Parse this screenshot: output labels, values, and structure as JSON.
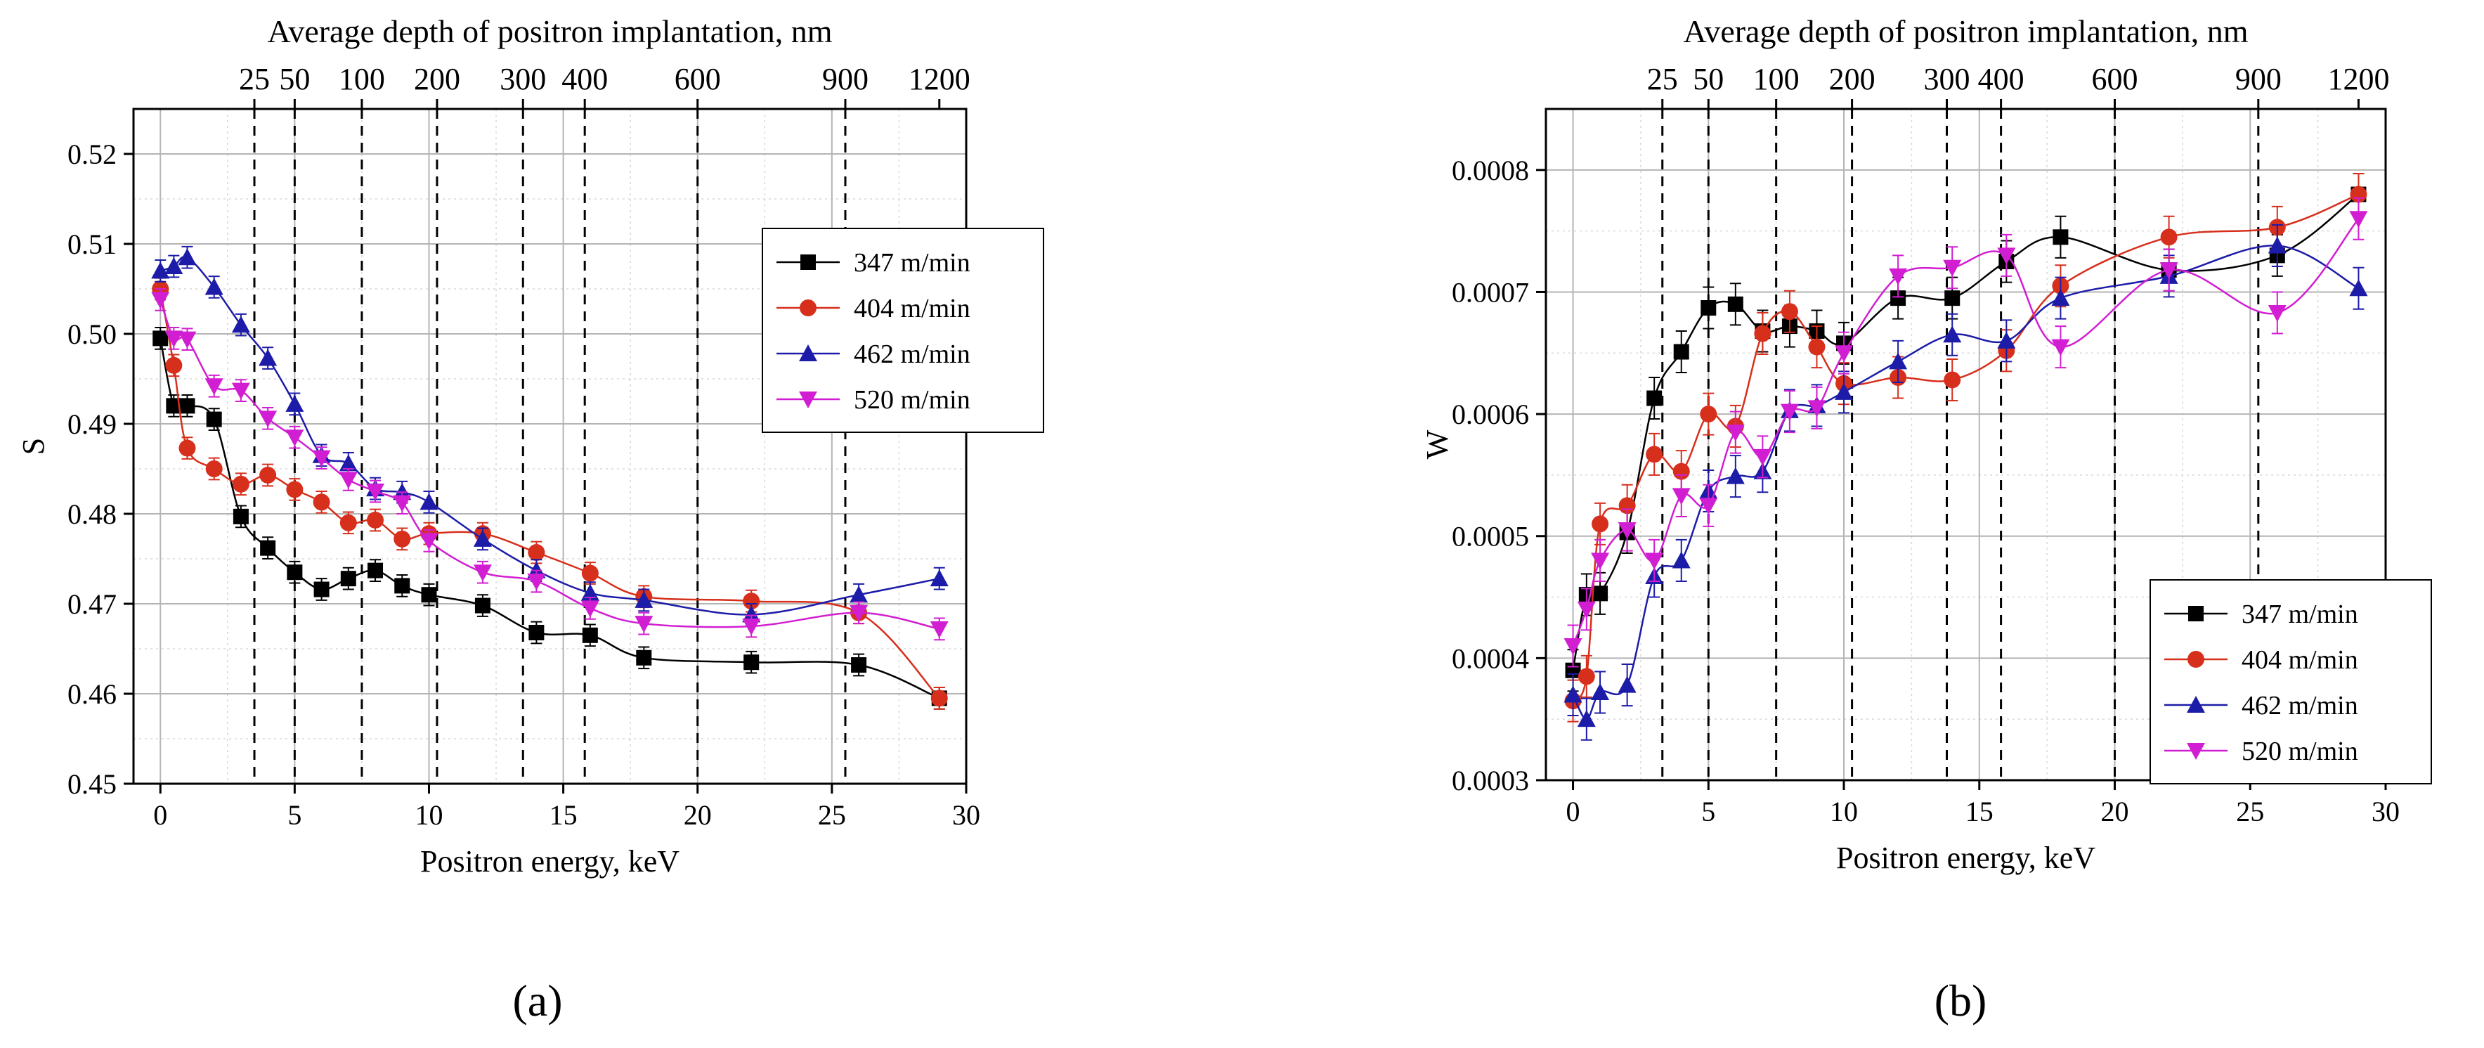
{
  "figure": {
    "panels": [
      "(a)",
      "(b)"
    ]
  },
  "chart_data": [
    {
      "type": "scatter",
      "panel_label": "(a)",
      "xlabel": "Positron energy, keV",
      "ylabel": "S",
      "top_axis_title": "Average depth of positron implantation, nm",
      "xlim": [
        -1,
        30
      ],
      "ylim": [
        0.45,
        0.525
      ],
      "x_ticks": [
        0,
        5,
        10,
        15,
        20,
        25,
        30
      ],
      "y_ticks": [
        "0.45",
        "0.46",
        "0.47",
        "0.48",
        "0.49",
        "0.50",
        "0.51",
        "0.52"
      ],
      "top_ticks": [
        {
          "label": "25",
          "energy": 3.5
        },
        {
          "label": "50",
          "energy": 5.0
        },
        {
          "label": "100",
          "energy": 7.5
        },
        {
          "label": "200",
          "energy": 10.3
        },
        {
          "label": "300",
          "energy": 13.5
        },
        {
          "label": "400",
          "energy": 15.8
        },
        {
          "label": "600",
          "energy": 20.0
        },
        {
          "label": "900",
          "energy": 25.5
        },
        {
          "label": "1200",
          "energy": 29.0
        }
      ],
      "grid": true,
      "legend_position": "top-right",
      "series": [
        {
          "name": "347 m/min",
          "marker": "square",
          "color": "#000000",
          "x": [
            0,
            0.5,
            1,
            2,
            3,
            4,
            5,
            6,
            7,
            8,
            9,
            10,
            12,
            14,
            16,
            18,
            22,
            26,
            29
          ],
          "y": [
            0.4995,
            0.492,
            0.492,
            0.4905,
            0.4797,
            0.4762,
            0.4735,
            0.4716,
            0.4728,
            0.4737,
            0.472,
            0.471,
            0.4698,
            0.4668,
            0.4665,
            0.464,
            0.4635,
            0.4632,
            0.4595
          ]
        },
        {
          "name": "404 m/min",
          "marker": "circle",
          "color": "#d62f1c",
          "x": [
            0,
            0.5,
            1,
            2,
            3,
            4,
            5,
            6,
            7,
            8,
            9,
            10,
            12,
            14,
            16,
            18,
            22,
            26,
            29
          ],
          "y": [
            0.505,
            0.4965,
            0.4873,
            0.485,
            0.4833,
            0.4843,
            0.4827,
            0.4813,
            0.479,
            0.4793,
            0.4772,
            0.4778,
            0.4778,
            0.4757,
            0.4734,
            0.4708,
            0.4703,
            0.469,
            0.4595
          ]
        },
        {
          "name": "462 m/min",
          "marker": "triangle-up",
          "color": "#1c1ca8",
          "x": [
            0,
            0.5,
            1,
            2,
            3,
            4,
            5,
            6,
            7,
            8,
            9,
            10,
            12,
            14,
            16,
            18,
            22,
            26,
            29
          ],
          "y": [
            0.507,
            0.5075,
            0.5085,
            0.5052,
            0.501,
            0.4973,
            0.4922,
            0.4865,
            0.4856,
            0.4828,
            0.4824,
            0.4813,
            0.4772,
            0.4737,
            0.4712,
            0.4704,
            0.4688,
            0.471,
            0.4728
          ]
        },
        {
          "name": "520 m/min",
          "marker": "triangle-down",
          "color": "#d21ed2",
          "x": [
            0,
            0.5,
            1,
            2,
            3,
            4,
            5,
            6,
            7,
            8,
            9,
            10,
            12,
            14,
            16,
            18,
            22,
            26,
            29
          ],
          "y": [
            0.5038,
            0.4995,
            0.4994,
            0.4942,
            0.4937,
            0.4906,
            0.4885,
            0.4862,
            0.4838,
            0.4825,
            0.4812,
            0.477,
            0.4735,
            0.4725,
            0.4695,
            0.4678,
            0.4675,
            0.469,
            0.4672
          ]
        }
      ]
    },
    {
      "type": "scatter",
      "panel_label": "(b)",
      "xlabel": "Positron energy, keV",
      "ylabel": "W",
      "top_axis_title": "Average depth of positron implantation, nm",
      "xlim": [
        -1,
        30
      ],
      "ylim": [
        0.0003,
        0.00085
      ],
      "x_ticks": [
        0,
        5,
        10,
        15,
        20,
        25,
        30
      ],
      "y_ticks": [
        "0.0003",
        "0.0004",
        "0.0005",
        "0.0006",
        "0.0007",
        "0.0008"
      ],
      "top_ticks": [
        {
          "label": "25",
          "energy": 3.3
        },
        {
          "label": "50",
          "energy": 5.0
        },
        {
          "label": "100",
          "energy": 7.5
        },
        {
          "label": "200",
          "energy": 10.3
        },
        {
          "label": "300",
          "energy": 13.8
        },
        {
          "label": "400",
          "energy": 15.8
        },
        {
          "label": "600",
          "energy": 20.0
        },
        {
          "label": "900",
          "energy": 25.3
        },
        {
          "label": "1200",
          "energy": 29.0
        }
      ],
      "grid": true,
      "legend_position": "bottom-right",
      "series": [
        {
          "name": "347 m/min",
          "marker": "square",
          "color": "#000000",
          "x": [
            0,
            0.5,
            1,
            2,
            3,
            4,
            5,
            6,
            7,
            8,
            9,
            10,
            12,
            14,
            16,
            18,
            22,
            26,
            29
          ],
          "y": [
            0.00039,
            0.000452,
            0.000453,
            0.000503,
            0.000613,
            0.000651,
            0.000687,
            0.00069,
            0.000668,
            0.000672,
            0.000668,
            0.000658,
            0.000695,
            0.000695,
            0.000725,
            0.000745,
            0.000718,
            0.00073,
            0.00078
          ]
        },
        {
          "name": "404 m/min",
          "marker": "circle",
          "color": "#d62f1c",
          "x": [
            0,
            0.5,
            1,
            2,
            3,
            4,
            5,
            6,
            7,
            8,
            9,
            10,
            12,
            14,
            16,
            18,
            22,
            26,
            29
          ],
          "y": [
            0.000365,
            0.000385,
            0.00051,
            0.000525,
            0.000567,
            0.000553,
            0.0006,
            0.00059,
            0.000666,
            0.000684,
            0.000655,
            0.000625,
            0.00063,
            0.000628,
            0.000652,
            0.000705,
            0.000745,
            0.000753,
            0.00078
          ]
        },
        {
          "name": "462 m/min",
          "marker": "triangle-up",
          "color": "#1c1ca8",
          "x": [
            0,
            0.5,
            1,
            2,
            3,
            4,
            5,
            6,
            7,
            8,
            9,
            10,
            12,
            14,
            16,
            18,
            22,
            26,
            29
          ],
          "y": [
            0.00037,
            0.00035,
            0.000372,
            0.000378,
            0.000467,
            0.00048,
            0.000537,
            0.000549,
            0.000553,
            0.000603,
            0.000607,
            0.000618,
            0.000643,
            0.000665,
            0.00066,
            0.000695,
            0.000713,
            0.000738,
            0.000703
          ]
        },
        {
          "name": "520 m/min",
          "marker": "triangle-down",
          "color": "#d21ed2",
          "x": [
            0,
            0.5,
            1,
            2,
            3,
            4,
            5,
            6,
            7,
            8,
            9,
            10,
            12,
            14,
            16,
            18,
            22,
            26,
            29
          ],
          "y": [
            0.00041,
            0.00044,
            0.00048,
            0.000505,
            0.00048,
            0.000533,
            0.000525,
            0.000585,
            0.000565,
            0.000602,
            0.000605,
            0.00065,
            0.000713,
            0.00072,
            0.00073,
            0.000655,
            0.000718,
            0.000683,
            0.00076
          ]
        }
      ]
    }
  ]
}
